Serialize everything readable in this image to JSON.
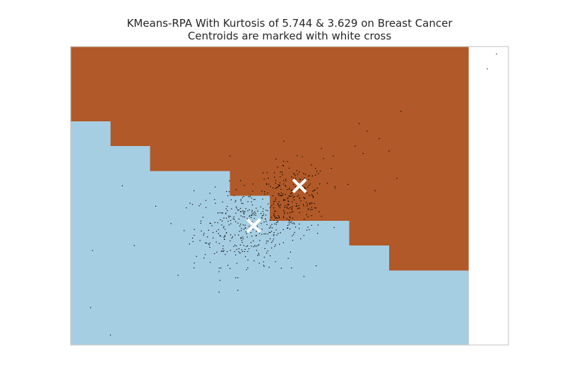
{
  "chart_data": {
    "type": "scatter",
    "title": "KMeans-RPA With Kurtosis of 5.744 & 3.629 on Breast Cancer",
    "subtitle": "Centroids are marked with white cross",
    "xlabel": "",
    "ylabel": "",
    "xlim": [
      0,
      11
    ],
    "ylim": [
      0,
      6
    ],
    "grid": false,
    "legend": "none",
    "colors": {
      "cluster_0": "#a6cee3",
      "cluster_1": "#b15928",
      "points": "#000000",
      "centroid": "#ffffff",
      "frame": "#cccccc"
    },
    "regions": {
      "extent_x": [
        0,
        10
      ],
      "boundary": [
        {
          "x0": 0,
          "x1": 1,
          "y": 4.5
        },
        {
          "x0": 1,
          "x1": 2,
          "y": 4.0
        },
        {
          "x0": 2,
          "x1": 4,
          "y": 3.5
        },
        {
          "x0": 4,
          "x1": 5,
          "y": 3.0
        },
        {
          "x0": 5,
          "x1": 7,
          "y": 2.5
        },
        {
          "x0": 7,
          "x1": 8,
          "y": 2.0
        },
        {
          "x0": 8,
          "x1": 10,
          "y": 1.5
        }
      ]
    },
    "centroids": [
      {
        "x": 4.6,
        "y": 2.4
      },
      {
        "x": 5.75,
        "y": 3.2
      }
    ],
    "points": [
      [
        10.7,
        5.85
      ],
      [
        10.47,
        5.55
      ],
      [
        8.3,
        4.7
      ],
      [
        7.25,
        4.45
      ],
      [
        7.45,
        4.3
      ],
      [
        7.75,
        4.15
      ],
      [
        7.15,
        4.0
      ],
      [
        8.0,
        3.9
      ],
      [
        6.3,
        3.95
      ],
      [
        7.35,
        3.85
      ],
      [
        6.6,
        3.8
      ],
      [
        4.0,
        3.8
      ],
      [
        8.2,
        3.35
      ],
      [
        7.65,
        3.1
      ],
      [
        1.3,
        3.2
      ],
      [
        3.1,
        3.1
      ],
      [
        3.5,
        3.05
      ],
      [
        3.95,
        3.0
      ],
      [
        1.6,
        2.0
      ],
      [
        3.25,
        2.1
      ],
      [
        4.85,
        1.6
      ],
      [
        5.55,
        1.55
      ],
      [
        3.75,
        1.3
      ],
      [
        0.55,
        1.9
      ],
      [
        3.0,
        2.85
      ],
      [
        0.5,
        0.75
      ],
      [
        1.0,
        0.2
      ],
      [
        4.2,
        1.1
      ],
      [
        4.15,
        2.65
      ],
      [
        4.3,
        2.85
      ],
      [
        4.55,
        2.95
      ],
      [
        3.85,
        2.55
      ],
      [
        4.95,
        2.7
      ],
      [
        5.25,
        2.8
      ],
      [
        3.55,
        2.4
      ],
      [
        3.75,
        2.2
      ],
      [
        4.05,
        2.15
      ],
      [
        4.35,
        2.0
      ],
      [
        4.75,
        2.1
      ],
      [
        5.1,
        2.2
      ],
      [
        5.45,
        2.35
      ],
      [
        3.5,
        2.05
      ],
      [
        3.85,
        1.9
      ],
      [
        4.25,
        1.85
      ],
      [
        4.7,
        1.8
      ],
      [
        5.05,
        1.95
      ],
      [
        3.35,
        1.75
      ],
      [
        3.95,
        1.6
      ],
      [
        4.45,
        1.55
      ],
      [
        2.85,
        2.3
      ],
      [
        3.1,
        1.55
      ],
      [
        2.7,
        1.4
      ],
      [
        5.2,
        2.55
      ],
      [
        5.45,
        2.65
      ],
      [
        5.75,
        2.75
      ],
      [
        6.0,
        2.85
      ],
      [
        5.3,
        3.0
      ],
      [
        5.55,
        3.05
      ],
      [
        5.9,
        3.15
      ],
      [
        6.2,
        3.05
      ],
      [
        5.6,
        3.35
      ],
      [
        5.85,
        3.45
      ],
      [
        6.15,
        3.55
      ],
      [
        5.35,
        3.6
      ],
      [
        5.15,
        3.25
      ],
      [
        6.45,
        3.25
      ],
      [
        6.65,
        3.15
      ],
      [
        6.05,
        2.6
      ],
      [
        5.5,
        2.5
      ],
      [
        6.35,
        3.75
      ],
      [
        6.55,
        3.55
      ]
    ],
    "cluster_centers_spread": [
      {
        "cx": 4.4,
        "cy": 2.35,
        "sx": 0.65,
        "sy": 0.38,
        "n": 330
      },
      {
        "cx": 5.55,
        "cy": 2.95,
        "sx": 0.45,
        "sy": 0.35,
        "n": 230
      }
    ]
  }
}
